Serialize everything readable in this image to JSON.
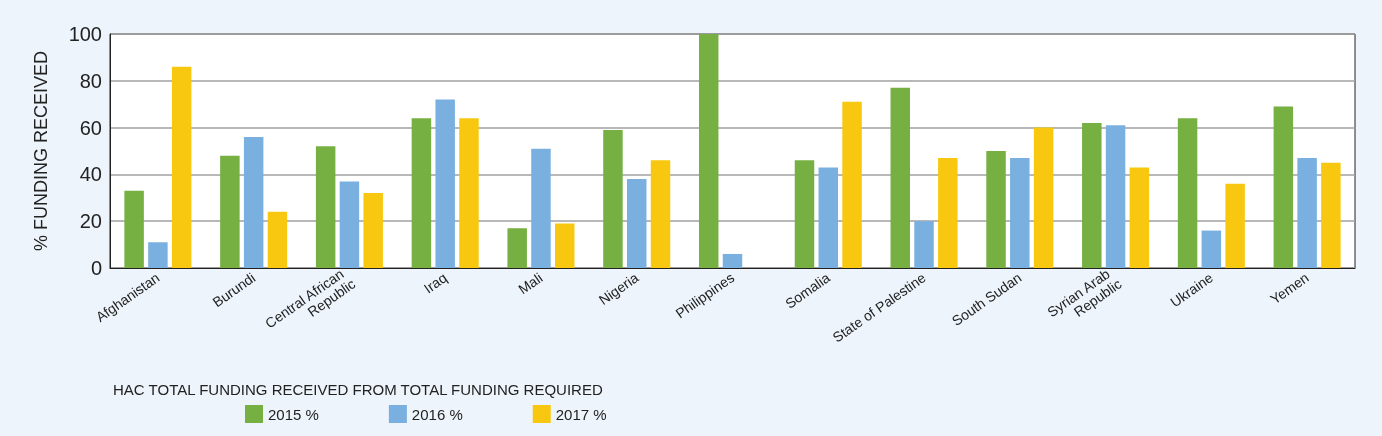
{
  "chart_data": {
    "type": "bar",
    "ylabel": "% FUNDING RECEIVED",
    "legend_title": "HAC TOTAL FUNDING RECEIVED FROM TOTAL FUNDING REQUIRED",
    "categories": [
      "Afghanistan",
      "Burundi",
      "Central African Republic",
      "Iraq",
      "Mali",
      "Nigeria",
      "Philippines",
      "Somalia",
      "State of Palestine",
      "South Sudan",
      "Syrian Arab Republic",
      "Ukraine",
      "Yemen"
    ],
    "series": [
      {
        "name": "2015 %",
        "color": "#76b043",
        "values": [
          33,
          48,
          52,
          64,
          17,
          59,
          100,
          46,
          77,
          50,
          62,
          64,
          69
        ]
      },
      {
        "name": "2016 %",
        "color": "#7ab0df",
        "values": [
          11,
          56,
          37,
          72,
          51,
          38,
          6,
          43,
          20,
          47,
          61,
          16,
          47
        ]
      },
      {
        "name": "2017 %",
        "color": "#f8c811",
        "values": [
          86,
          24,
          32,
          64,
          19,
          46,
          null,
          71,
          47,
          60,
          43,
          36,
          45
        ]
      }
    ],
    "ylim": [
      0,
      100
    ],
    "yticks": [
      0,
      20,
      40,
      60,
      80,
      100
    ],
    "grid": "y",
    "legend": "bottom left"
  }
}
